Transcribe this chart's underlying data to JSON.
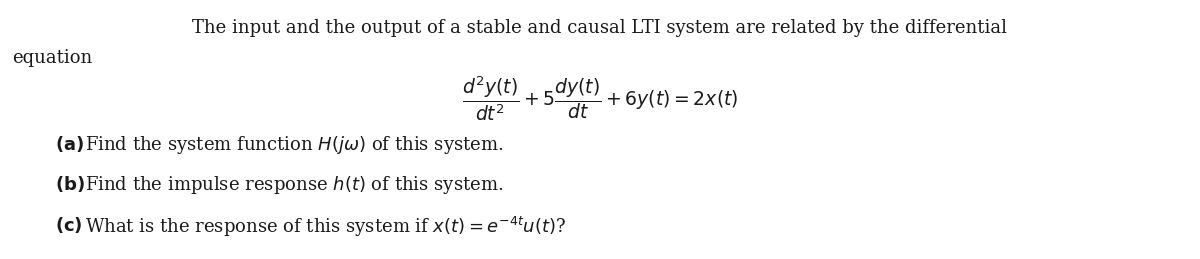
{
  "figsize": [
    12.0,
    2.59
  ],
  "dpi": 100,
  "bg_color": "#ffffff",
  "line1": "The input and the output of a stable and causal LTI system are related by the differential",
  "line2": "equation",
  "equation": "$\\dfrac{d^2y(t)}{dt^2} + 5\\dfrac{dy(t)}{dt} + 6y(t) = 2x(t)$",
  "part_a": "(a)  Find the system function $H(j\\omega)$ of this system.",
  "part_b": "(b)  Find the impulse response $h(t)$ of this system.",
  "part_c": "(c)  What is the response of this system if $x(t) = e^{-4t}u(t)$?",
  "fontsize_main": 13.0,
  "fontsize_eq": 13.5,
  "text_color": "#1a1a1a"
}
